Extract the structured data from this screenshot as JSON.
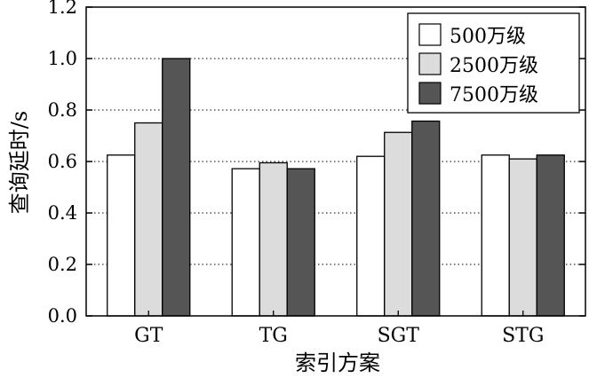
{
  "chart_data": {
    "type": "bar",
    "title": "",
    "xlabel": "索引方案",
    "ylabel": "查询延时/s",
    "categories": [
      "GT",
      "TG",
      "SGT",
      "STG"
    ],
    "series": [
      {
        "name": "500万级",
        "color": "#ffffff",
        "values": [
          0.625,
          0.572,
          0.62,
          0.625
        ]
      },
      {
        "name": "2500万级",
        "color": "#dcdcdc",
        "values": [
          0.75,
          0.595,
          0.713,
          0.61
        ]
      },
      {
        "name": "7500万级",
        "color": "#555555",
        "values": [
          1.0,
          0.572,
          0.757,
          0.625
        ]
      }
    ],
    "ylim": [
      0.0,
      1.2
    ],
    "yticks": [
      "0.0",
      "0.2",
      "0.4",
      "0.6",
      "0.8",
      "1.0",
      "1.2"
    ],
    "grid": "horizontal-dotted",
    "legend_position": "top-right"
  }
}
